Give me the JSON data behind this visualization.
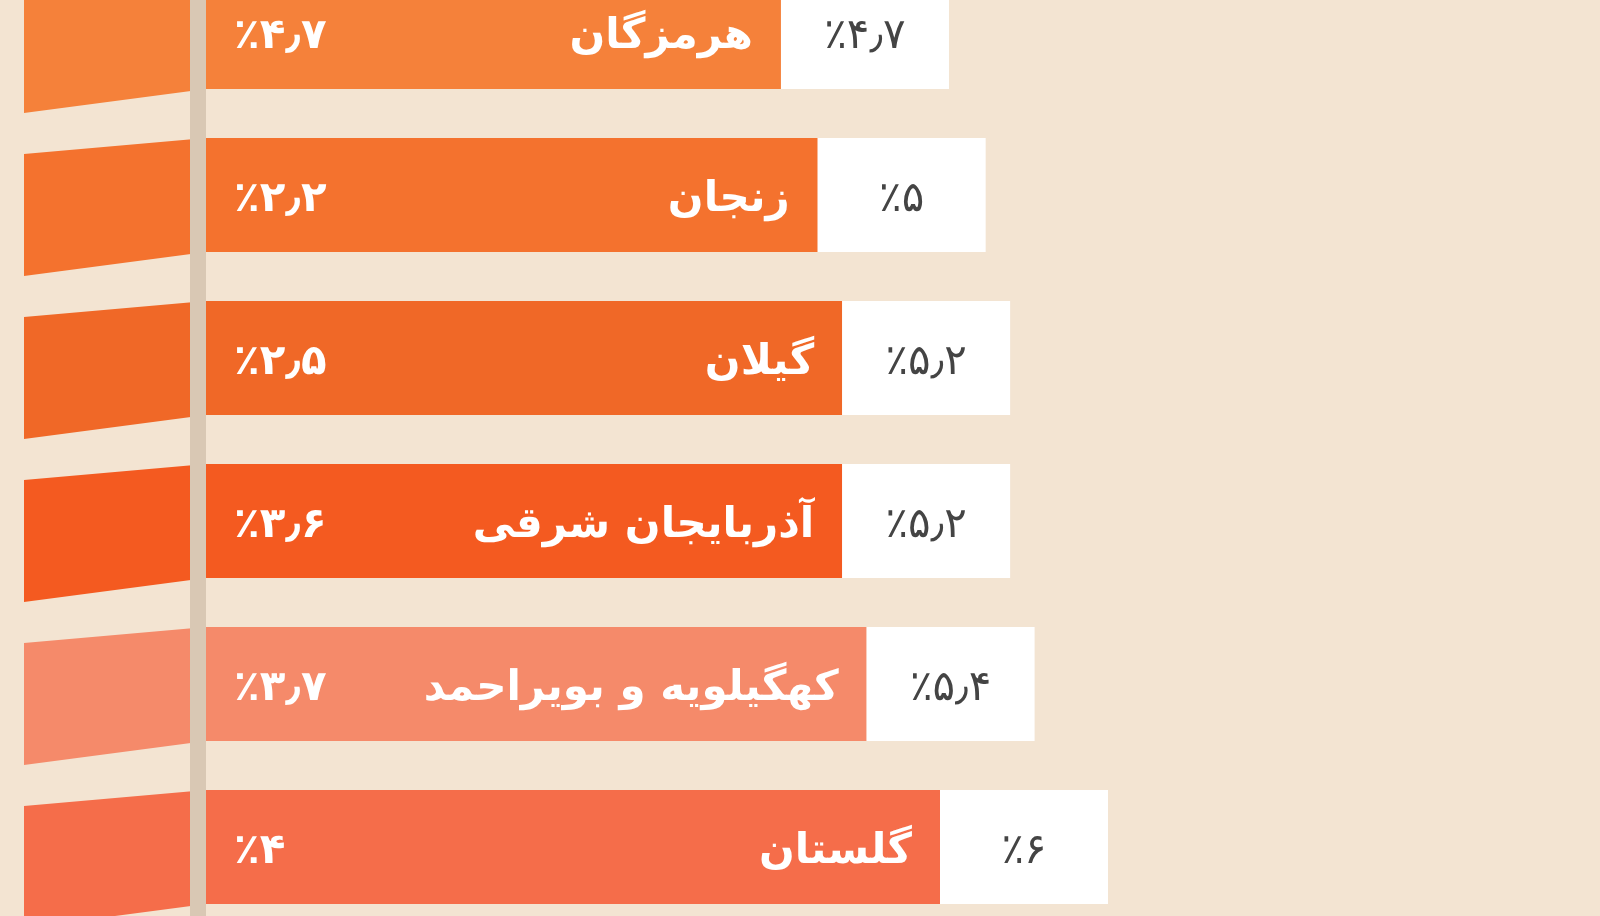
{
  "chart_data": {
    "type": "bar",
    "orientation": "horizontal",
    "data_labels": true,
    "categories": [
      "هرمزگان",
      "زنجان",
      "گیلان",
      "آذربایجان شرقی",
      "کهگیلویه و بویراحمد",
      "گلستان"
    ],
    "values": [
      4.7,
      5,
      5.2,
      5.2,
      5.4,
      6
    ],
    "value_labels": [
      "٪۴٫۷",
      "٪۵",
      "٪۵٫۲",
      "٪۵٫۲",
      "٪۵٫۴",
      "٪۶"
    ],
    "colors": [
      "#f5813a",
      "#f4722e",
      "#f06827",
      "#f45a20",
      "#f58a6a",
      "#f56d4a"
    ],
    "annotations": [
      "٪۴٫۷",
      "٪۲٫۲",
      "٪۲٫۵",
      "٪۳٫۶",
      "٪۳٫۷",
      "٪۴"
    ]
  }
}
